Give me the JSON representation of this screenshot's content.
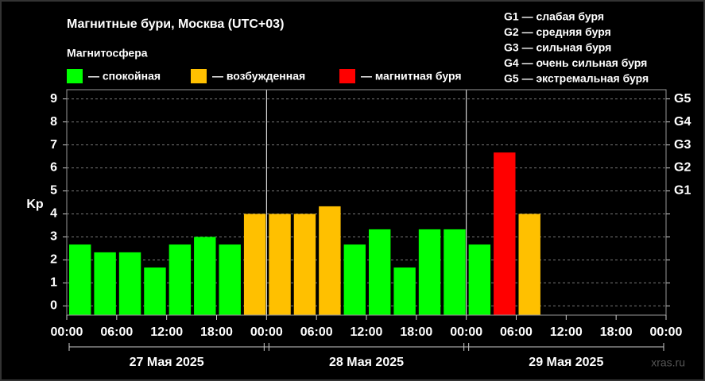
{
  "chart_data": {
    "type": "bar",
    "title": "Магнитные бури, Москва (UTC+03)",
    "legend_title": "Магнитосфера",
    "legend": [
      {
        "name": "— спокойная",
        "color": "#00ff00"
      },
      {
        "name": "— возбужденная",
        "color": "#ffc000"
      },
      {
        "name": "— магнитная буря",
        "color": "#ff0000"
      }
    ],
    "g_scale": [
      "G1 — слабая буря",
      "G2 — средняя буря",
      "G3 — сильная буря",
      "G4 — очень сильная буря",
      "G5 — экстремальная буря"
    ],
    "ylabel": "Kp",
    "x": [
      0,
      3,
      6,
      9,
      12,
      15,
      18,
      21,
      24,
      27,
      30,
      33,
      36,
      39,
      42,
      45,
      48,
      51,
      54
    ],
    "bar_width": 3,
    "values": [
      2.67,
      2.33,
      2.33,
      1.67,
      2.67,
      3.0,
      2.67,
      4.0,
      4.0,
      4.0,
      4.33,
      2.67,
      3.33,
      1.67,
      3.33,
      3.33,
      2.67,
      6.67,
      4.0
    ],
    "colors": [
      "#00ff00",
      "#00ff00",
      "#00ff00",
      "#00ff00",
      "#00ff00",
      "#00ff00",
      "#00ff00",
      "#ffc000",
      "#ffc000",
      "#ffc000",
      "#ffc000",
      "#00ff00",
      "#00ff00",
      "#00ff00",
      "#00ff00",
      "#00ff00",
      "#00ff00",
      "#ff0000",
      "#ffc000"
    ],
    "xlim": [
      0,
      72
    ],
    "xticks": [
      {
        "value": 0,
        "label": "00:00"
      },
      {
        "value": 6,
        "label": "06:00"
      },
      {
        "value": 12,
        "label": "12:00"
      },
      {
        "value": 18,
        "label": "18:00"
      },
      {
        "value": 24,
        "label": "00:00"
      },
      {
        "value": 30,
        "label": "06:00"
      },
      {
        "value": 36,
        "label": "12:00"
      },
      {
        "value": 42,
        "label": "18:00"
      },
      {
        "value": 48,
        "label": "00:00"
      },
      {
        "value": 54,
        "label": "06:00"
      },
      {
        "value": 60,
        "label": "12:00"
      },
      {
        "value": 66,
        "label": "18:00"
      },
      {
        "value": 72,
        "label": "00:00"
      }
    ],
    "days": [
      "27 Мая 2025",
      "28 Мая 2025",
      "29 Мая 2025"
    ],
    "ylim": [
      -0.4,
      9.4
    ],
    "yticks": [
      0,
      1,
      2,
      3,
      4,
      5,
      6,
      7,
      8,
      9
    ],
    "y2lim": [
      -0.4,
      9.4
    ],
    "y2ticks": [
      {
        "value": 5,
        "label": "G1"
      },
      {
        "value": 6,
        "label": "G2"
      },
      {
        "value": 7,
        "label": "G3"
      },
      {
        "value": 8,
        "label": "G4"
      },
      {
        "value": 9,
        "label": "G5"
      }
    ],
    "grid": true,
    "watermark": "xras.ru"
  }
}
